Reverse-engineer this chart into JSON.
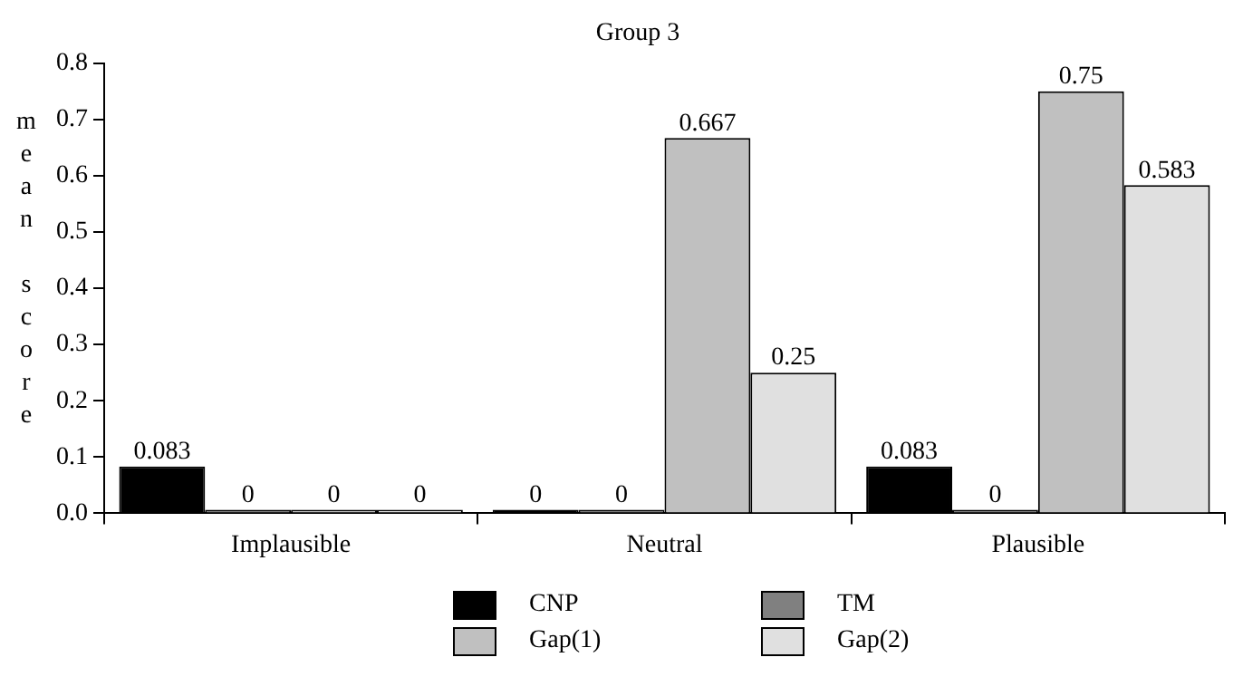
{
  "chart_data": {
    "type": "bar",
    "title": "Group 3",
    "ylabel": "mean score",
    "categories": [
      "Implausible",
      "Neutral",
      "Plausible"
    ],
    "series": [
      {
        "name": "CNP",
        "color": "#000000",
        "values": [
          0.083,
          0,
          0.083
        ]
      },
      {
        "name": "TM",
        "color": "#808080",
        "values": [
          0,
          0,
          0
        ]
      },
      {
        "name": "Gap(1)",
        "color": "#c0c0c0",
        "values": [
          0,
          0.667,
          0.75
        ]
      },
      {
        "name": "Gap(2)",
        "color": "#e0e0e0",
        "values": [
          0,
          0.25,
          0.583
        ]
      }
    ],
    "ylim": [
      0,
      0.8
    ],
    "yticks": [
      {
        "value": 0,
        "label": "0.0"
      },
      {
        "value": 0.1,
        "label": "0.1"
      },
      {
        "value": 0.2,
        "label": "0.2"
      },
      {
        "value": 0.3,
        "label": "0.3"
      },
      {
        "value": 0.4,
        "label": "0.4"
      },
      {
        "value": 0.5,
        "label": "0.5"
      },
      {
        "value": 0.6,
        "label": "0.6"
      },
      {
        "value": 0.7,
        "label": "0.7"
      },
      {
        "value": 0.8,
        "label": "0.8"
      }
    ],
    "data_labels": true,
    "grid": false,
    "legend": "bottom"
  }
}
